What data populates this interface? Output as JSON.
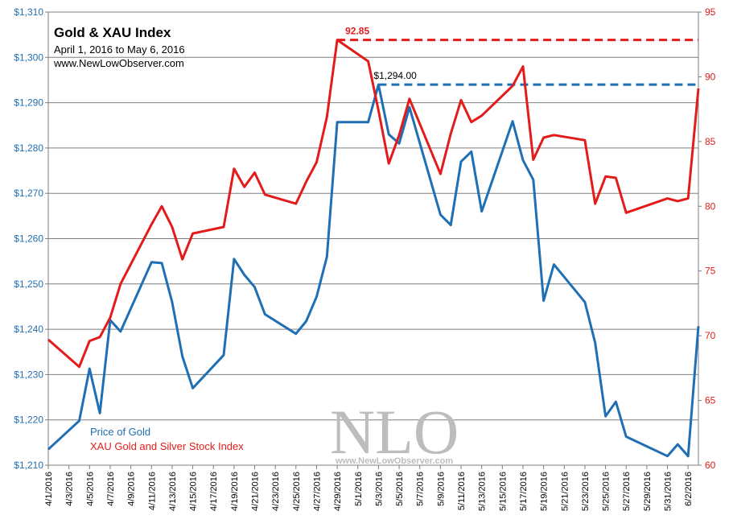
{
  "chart_data": {
    "type": "line",
    "title": "Gold & XAU Index",
    "subtitle": "April 1, 2016 to May 6, 2016",
    "source": "www.NewLowObserver.com",
    "x_ticks": [
      "4/1/2016",
      "4/3/2016",
      "4/5/2016",
      "4/7/2016",
      "4/9/2016",
      "4/11/2016",
      "4/13/2016",
      "4/15/2016",
      "4/17/2016",
      "4/19/2016",
      "4/21/2016",
      "4/23/2016",
      "4/25/2016",
      "4/27/2016",
      "4/29/2016",
      "5/1/2016",
      "5/3/2016",
      "5/5/2016",
      "5/7/2016",
      "5/9/2016",
      "5/11/2016",
      "5/13/2016",
      "5/15/2016",
      "5/17/2016",
      "5/19/2016",
      "5/21/2016",
      "5/23/2016",
      "5/25/2016",
      "5/27/2016",
      "5/29/2016",
      "5/31/2016",
      "6/2/2016"
    ],
    "y_left": {
      "ticks": [
        "$1,210",
        "$1,220",
        "$1,230",
        "$1,240",
        "$1,250",
        "$1,260",
        "$1,270",
        "$1,280",
        "$1,290",
        "$1,300",
        "$1,310"
      ],
      "range": [
        1210,
        1310
      ]
    },
    "y_right": {
      "ticks": [
        "60",
        "65",
        "70",
        "75",
        "80",
        "85",
        "90",
        "95"
      ],
      "range": [
        60,
        95
      ]
    },
    "grid": true,
    "legend_position": "bottom-left",
    "series": [
      {
        "name": "Price of Gold",
        "axis": "left",
        "color": "#1f6fb4",
        "x": [
          "4/1/2016",
          "4/4/2016",
          "4/5/2016",
          "4/6/2016",
          "4/7/2016",
          "4/8/2016",
          "4/11/2016",
          "4/12/2016",
          "4/13/2016",
          "4/14/2016",
          "4/15/2016",
          "4/18/2016",
          "4/19/2016",
          "4/20/2016",
          "4/21/2016",
          "4/22/2016",
          "4/25/2016",
          "4/26/2016",
          "4/27/2016",
          "4/28/2016",
          "4/29/2016",
          "5/2/2016",
          "5/3/2016",
          "5/4/2016",
          "5/5/2016",
          "5/6/2016",
          "5/9/2016",
          "5/10/2016",
          "5/11/2016",
          "5/12/2016",
          "5/13/2016",
          "5/16/2016",
          "5/17/2016",
          "5/18/2016",
          "5/19/2016",
          "5/20/2016",
          "5/23/2016",
          "5/24/2016",
          "5/25/2016",
          "5/26/2016",
          "5/27/2016",
          "5/31/2016",
          "6/1/2016",
          "6/2/2016",
          "6/3/2016"
        ],
        "values": [
          1213.5,
          1219.8,
          1231.3,
          1221.5,
          1242.0,
          1239.5,
          1254.8,
          1254.6,
          1246.0,
          1234.0,
          1227.0,
          1234.3,
          1255.5,
          1252.0,
          1249.3,
          1243.3,
          1239.0,
          1241.8,
          1247.2,
          1256.0,
          1285.7,
          1285.7,
          1294.0,
          1283.0,
          1281.0,
          1289.0,
          1265.3,
          1263.0,
          1277.0,
          1279.2,
          1266.0,
          1285.9,
          1277.3,
          1273.0,
          1246.3,
          1254.3,
          1246.0,
          1237.0,
          1220.8,
          1224.0,
          1216.3,
          1212.0,
          1214.6,
          1212.0,
          1240.7
        ]
      },
      {
        "name": "XAU Gold and Silver Stock Index",
        "axis": "right",
        "color": "#e31b1b",
        "x": [
          "4/1/2016",
          "4/4/2016",
          "4/5/2016",
          "4/6/2016",
          "4/7/2016",
          "4/8/2016",
          "4/11/2016",
          "4/12/2016",
          "4/13/2016",
          "4/14/2016",
          "4/15/2016",
          "4/18/2016",
          "4/19/2016",
          "4/20/2016",
          "4/21/2016",
          "4/22/2016",
          "4/25/2016",
          "4/26/2016",
          "4/27/2016",
          "4/28/2016",
          "4/29/2016",
          "5/2/2016",
          "5/3/2016",
          "5/4/2016",
          "5/5/2016",
          "5/6/2016",
          "5/9/2016",
          "5/10/2016",
          "5/11/2016",
          "5/12/2016",
          "5/13/2016",
          "5/16/2016",
          "5/17/2016",
          "5/18/2016",
          "5/19/2016",
          "5/20/2016",
          "5/23/2016",
          "5/24/2016",
          "5/25/2016",
          "5/26/2016",
          "5/27/2016",
          "5/31/2016",
          "6/1/2016",
          "6/2/2016",
          "6/3/2016"
        ],
        "values": [
          69.7,
          67.6,
          69.6,
          69.9,
          71.4,
          74.0,
          78.6,
          80.0,
          78.4,
          75.9,
          77.9,
          78.4,
          82.9,
          81.5,
          82.6,
          80.9,
          80.2,
          81.9,
          83.4,
          86.9,
          92.85,
          91.2,
          87.4,
          83.3,
          85.5,
          88.3,
          82.5,
          85.6,
          88.2,
          86.5,
          87.0,
          89.3,
          90.8,
          83.6,
          85.3,
          85.5,
          85.1,
          80.2,
          82.3,
          82.2,
          79.5,
          80.6,
          80.4,
          80.6,
          89.1
        ]
      }
    ],
    "annotations": [
      {
        "label": "$1,294.00",
        "series": "Price of Gold",
        "value": 1294.0,
        "from": "5/3/2016",
        "to": "6/3/2016",
        "style": "dashed"
      },
      {
        "label": "92.85",
        "series": "XAU Gold and Silver Stock Index",
        "value": 92.85,
        "from": "4/29/2016",
        "to": "6/3/2016",
        "style": "dashed"
      }
    ],
    "watermark": {
      "text": "NLO",
      "url": "www.NewLowObserver.com"
    }
  }
}
